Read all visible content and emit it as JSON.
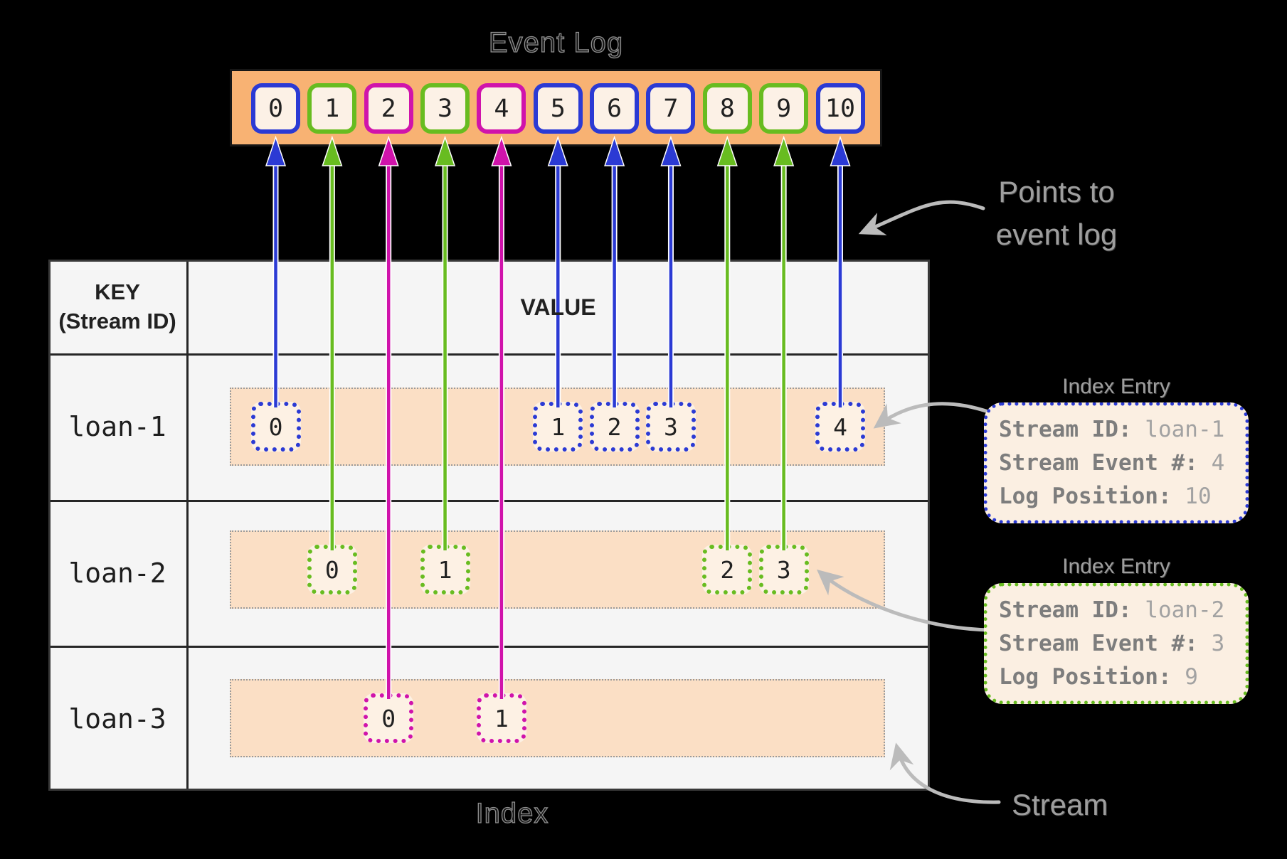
{
  "palette": {
    "blue": "#2B3AD4",
    "green": "#68BC20",
    "magenta": "#D013AB",
    "orange_bar": "#F8B273",
    "cell_fill": "#FCF1E6",
    "band_fill": "#FBDFC5",
    "box_fill": "#FDF1E4",
    "gray_arrow": "#BBBBBB"
  },
  "event_log": {
    "title": "Event Log",
    "cells": [
      {
        "label": "0",
        "color": "blue"
      },
      {
        "label": "1",
        "color": "green"
      },
      {
        "label": "2",
        "color": "magenta"
      },
      {
        "label": "3",
        "color": "green"
      },
      {
        "label": "4",
        "color": "magenta"
      },
      {
        "label": "5",
        "color": "blue"
      },
      {
        "label": "6",
        "color": "blue"
      },
      {
        "label": "7",
        "color": "blue"
      },
      {
        "label": "8",
        "color": "green"
      },
      {
        "label": "9",
        "color": "green"
      },
      {
        "label": "10",
        "color": "blue"
      }
    ]
  },
  "table": {
    "key_header": [
      "KEY",
      "(Stream ID)"
    ],
    "value_header": "VALUE",
    "caption": "Index"
  },
  "streams": [
    {
      "id": "loan-1",
      "color": "blue",
      "boxes": [
        {
          "label": "0",
          "cell": 0
        },
        {
          "label": "1",
          "cell": 5
        },
        {
          "label": "2",
          "cell": 6
        },
        {
          "label": "3",
          "cell": 7
        },
        {
          "label": "4",
          "cell": 10
        }
      ]
    },
    {
      "id": "loan-2",
      "color": "green",
      "boxes": [
        {
          "label": "0",
          "cell": 1
        },
        {
          "label": "1",
          "cell": 3
        },
        {
          "label": "2",
          "cell": 8
        },
        {
          "label": "3",
          "cell": 9
        }
      ]
    },
    {
      "id": "loan-3",
      "color": "magenta",
      "boxes": [
        {
          "label": "0",
          "cell": 2
        },
        {
          "label": "1",
          "cell": 4
        }
      ]
    }
  ],
  "index_entries": [
    {
      "title": "Index Entry",
      "color": "blue",
      "rows": [
        {
          "label": "Stream ID:",
          "value": "loan-1"
        },
        {
          "label": "Stream Event #:",
          "value": "4"
        },
        {
          "label": "Log Position:",
          "value": "10"
        }
      ]
    },
    {
      "title": "Index Entry",
      "color": "green",
      "rows": [
        {
          "label": "Stream ID:",
          "value": "loan-2"
        },
        {
          "label": "Stream Event #:",
          "value": "3"
        },
        {
          "label": "Log Position:",
          "value": "9"
        }
      ]
    }
  ],
  "annotations": {
    "points_to_line1": "Points to",
    "points_to_line2": "event log",
    "stream_label": "Stream",
    "index_entry_title": "Index Entry"
  }
}
